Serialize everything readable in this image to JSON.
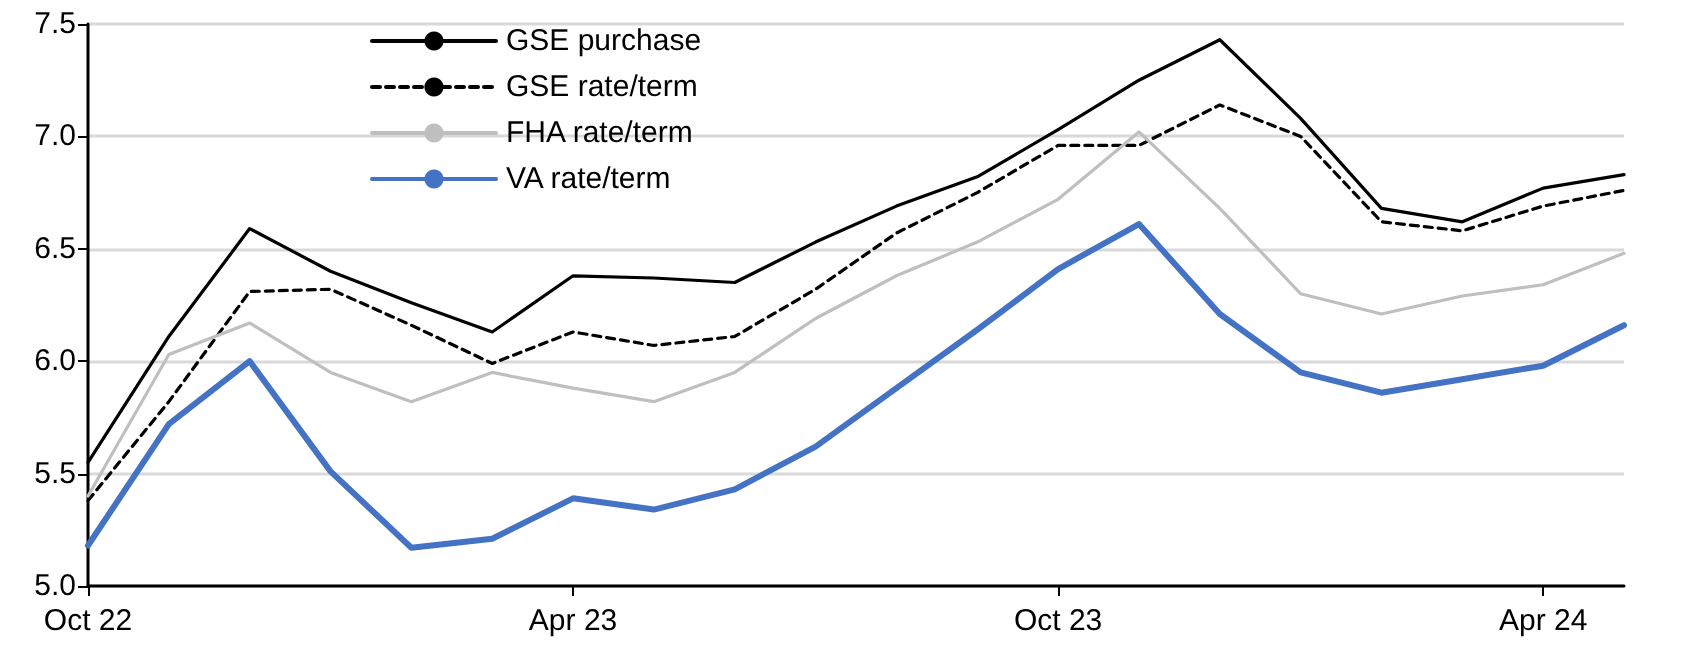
{
  "chart_data": {
    "type": "line",
    "categories": [
      "Oct 22",
      null,
      null,
      null,
      null,
      null,
      "Apr 23",
      null,
      null,
      null,
      null,
      null,
      "Oct 23",
      null,
      null,
      null,
      null,
      null,
      "Apr 24",
      null
    ],
    "series": [
      {
        "name": "GSE purchase",
        "color": "#000000",
        "line_style": "solid",
        "values": [
          5.55,
          6.11,
          6.59,
          6.4,
          6.26,
          6.13,
          6.38,
          6.37,
          6.35,
          6.53,
          6.69,
          6.82,
          7.03,
          7.25,
          7.43,
          7.08,
          6.68,
          6.62,
          6.77,
          6.83
        ]
      },
      {
        "name": "GSE rate/term",
        "color": "#000000",
        "line_style": "dashed",
        "values": [
          5.38,
          5.82,
          6.31,
          6.32,
          6.16,
          5.99,
          6.13,
          6.07,
          6.11,
          6.32,
          6.57,
          6.75,
          6.96,
          6.96,
          7.14,
          7.0,
          6.62,
          6.58,
          6.69,
          6.76
        ]
      },
      {
        "name": "FHA rate/term",
        "color": "#bfbfbf",
        "line_style": "solid",
        "values": [
          5.4,
          6.03,
          6.17,
          5.95,
          5.82,
          5.95,
          5.88,
          5.82,
          5.95,
          6.19,
          6.38,
          6.53,
          6.72,
          7.02,
          6.68,
          6.3,
          6.21,
          6.29,
          6.34,
          6.48
        ]
      },
      {
        "name": "VA rate/term",
        "color": "#4472c4",
        "line_style": "solid",
        "values": [
          5.18,
          5.72,
          6.0,
          5.51,
          5.17,
          5.21,
          5.39,
          5.34,
          5.43,
          5.62,
          5.88,
          6.14,
          6.41,
          6.61,
          6.21,
          5.95,
          5.86,
          5.92,
          5.98,
          6.16
        ]
      }
    ],
    "ylim": [
      5.0,
      7.5
    ],
    "yticks": [
      {
        "value": 5.0,
        "label": "5.0"
      },
      {
        "value": 5.5,
        "label": "5.5"
      },
      {
        "value": 6.0,
        "label": "6.0"
      },
      {
        "value": 6.5,
        "label": "6.5"
      },
      {
        "value": 7.0,
        "label": "7.0"
      },
      {
        "value": 7.5,
        "label": "7.5"
      }
    ],
    "grid": "y",
    "legend": "top",
    "marker": "none"
  }
}
